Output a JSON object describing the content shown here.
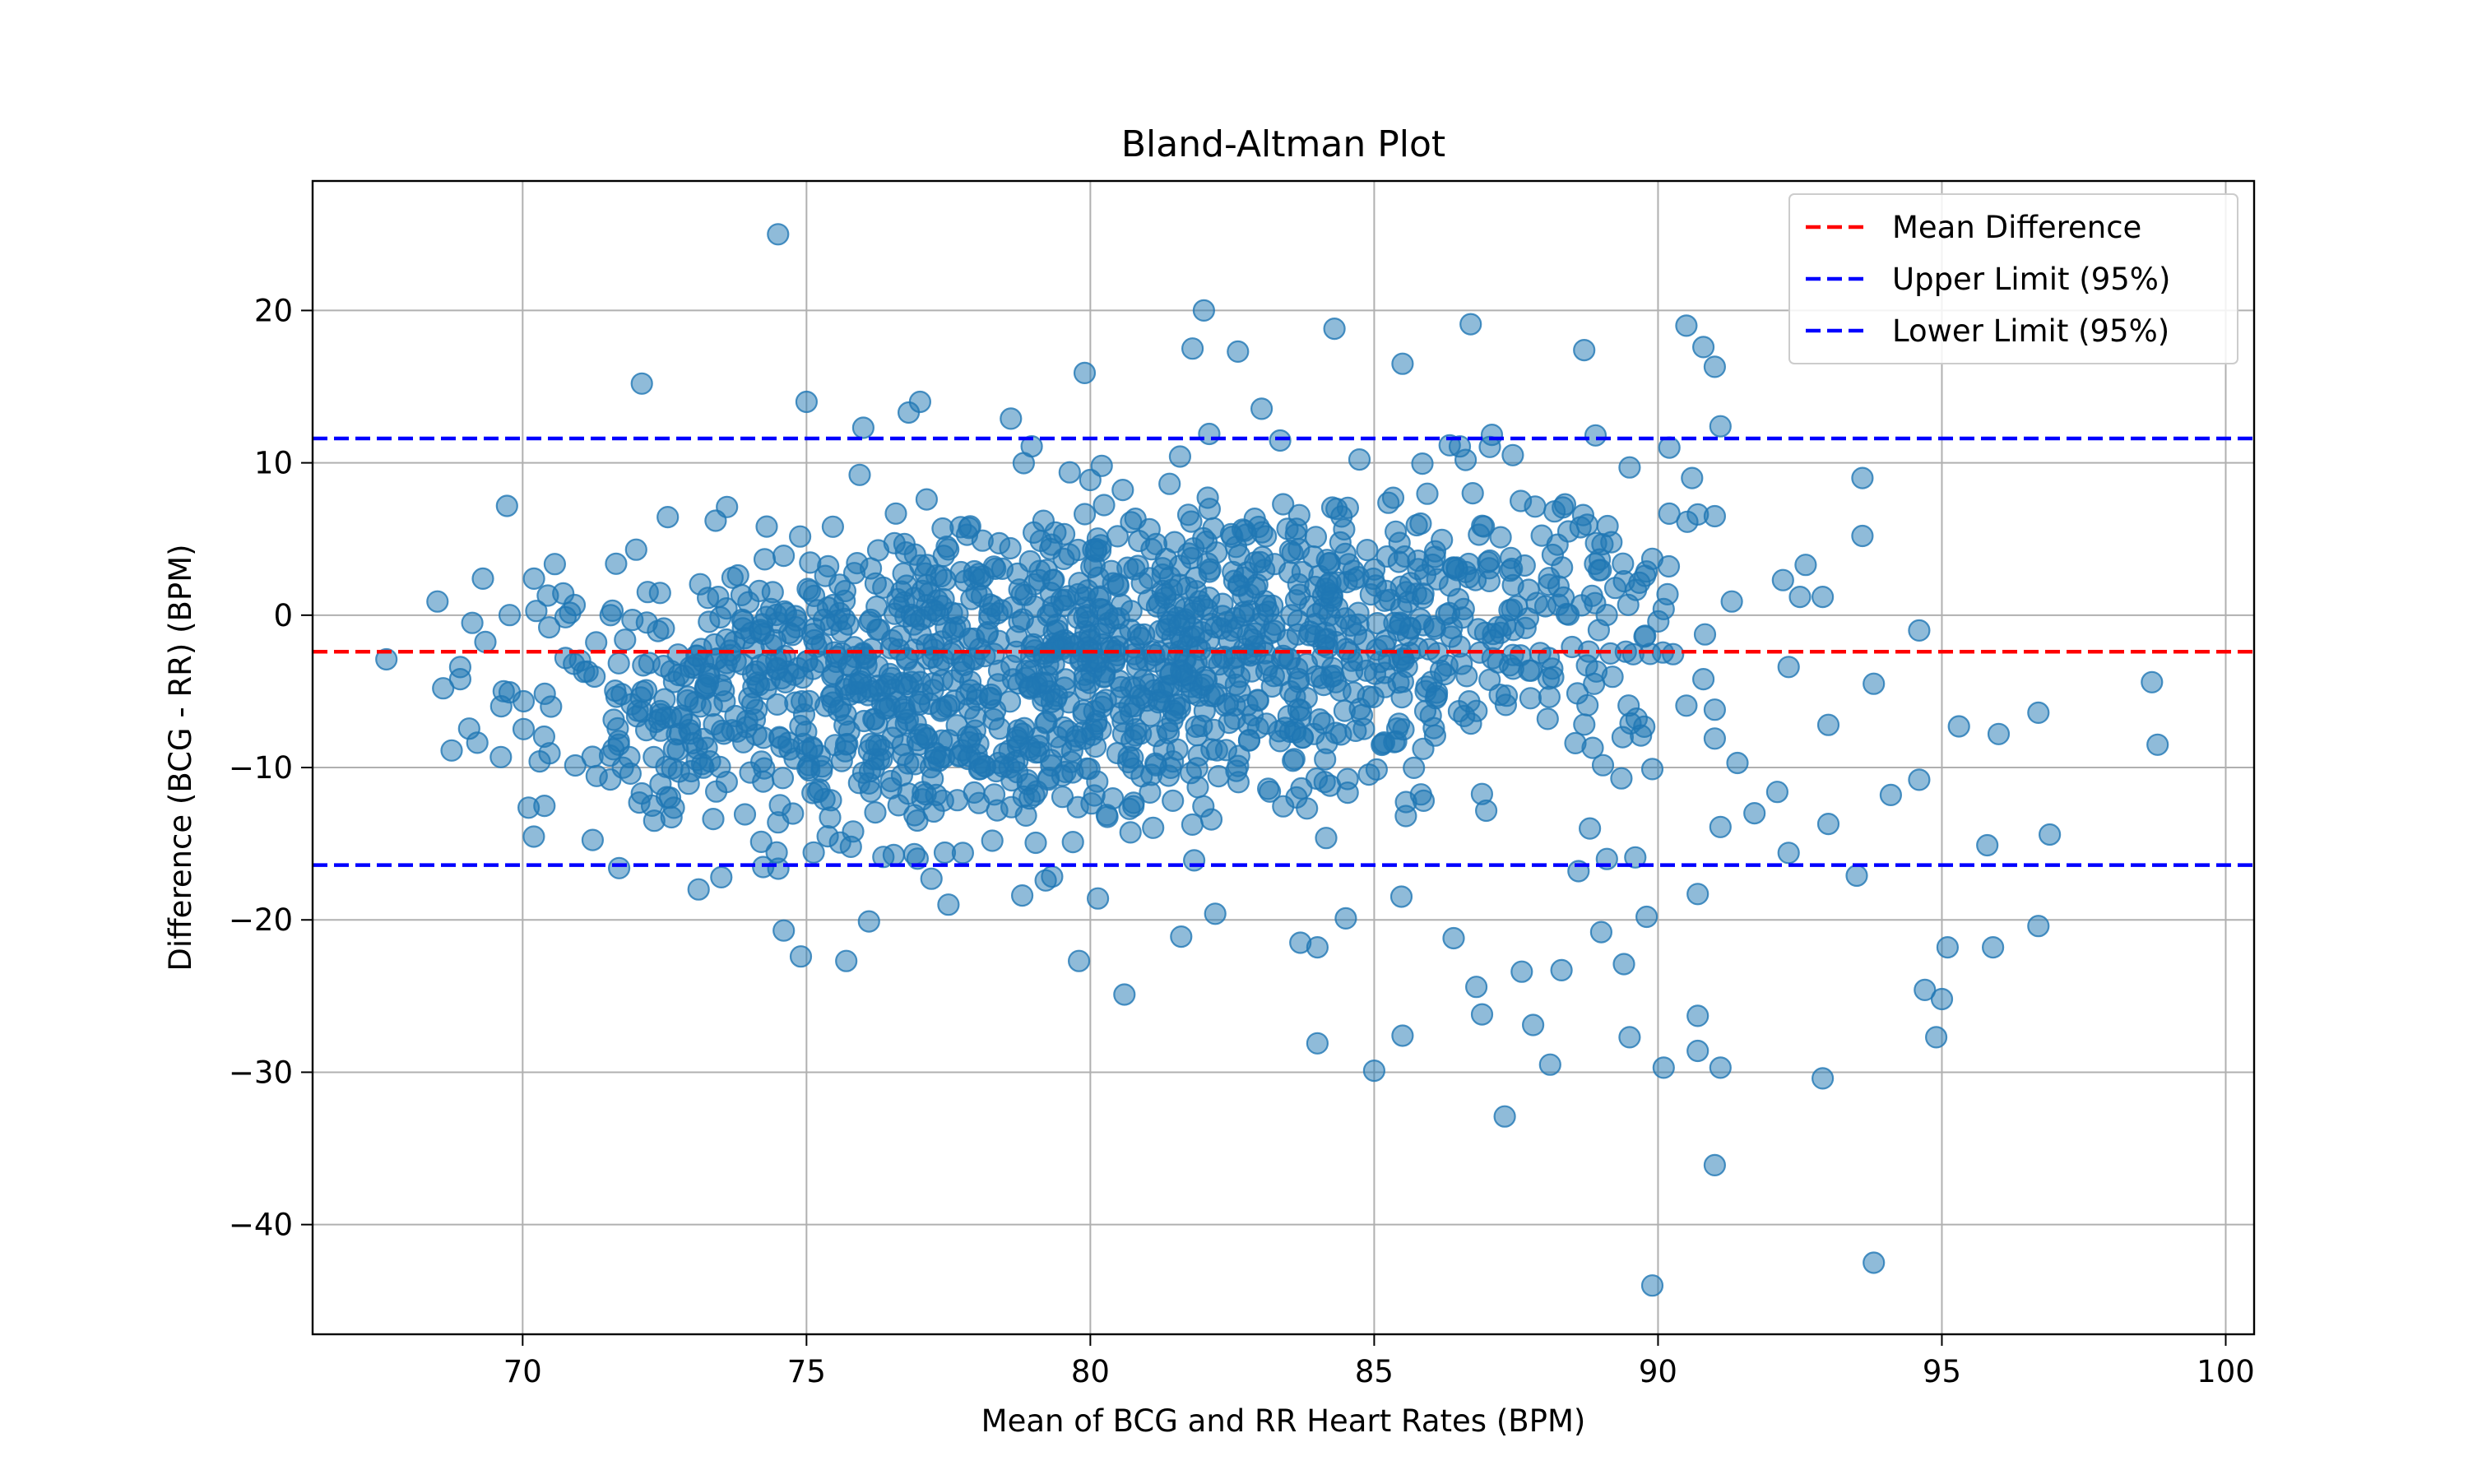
{
  "chart_data": {
    "type": "scatter",
    "title": "Bland-Altman Plot",
    "xlabel": "Mean of BCG and RR Heart Rates (BPM)",
    "ylabel": "Difference (BCG - RR) (BPM)",
    "xlim": [
      66.3,
      100.5
    ],
    "ylim": [
      -47.2,
      28.5
    ],
    "xticks": [
      70,
      75,
      80,
      85,
      90,
      95,
      100
    ],
    "xtick_labels": [
      "70",
      "75",
      "80",
      "85",
      "90",
      "95",
      "100"
    ],
    "yticks": [
      -40,
      -30,
      -20,
      -10,
      0,
      10,
      20
    ],
    "ytick_labels": [
      "−40",
      "−30",
      "−20",
      "−10",
      "0",
      "10",
      "20"
    ],
    "grid": true,
    "legend_position": "top-right",
    "colors": {
      "points": "#1f77b4",
      "mean_line": "#ff0000",
      "limit_lines": "#0000ff",
      "grid": "#b0b0b0"
    },
    "reference_lines": [
      {
        "name": "Mean Difference",
        "y": -2.4,
        "color": "#ff0000"
      },
      {
        "name": "Upper Limit (95%)",
        "y": 11.6,
        "color": "#0000ff"
      },
      {
        "name": "Lower Limit (95%)",
        "y": -16.4,
        "color": "#0000ff"
      }
    ],
    "series": [
      {
        "points": [
          [
            74.5,
            25.0
          ],
          [
            72.1,
            15.2
          ],
          [
            75.0,
            14.0
          ],
          [
            76.8,
            13.3
          ],
          [
            77.0,
            14.0
          ],
          [
            82.0,
            20.0
          ],
          [
            84.3,
            18.8
          ],
          [
            86.7,
            19.1
          ],
          [
            90.5,
            19.0
          ],
          [
            90.8,
            17.6
          ],
          [
            91.0,
            16.3
          ],
          [
            85.5,
            16.5
          ],
          [
            88.7,
            17.4
          ],
          [
            81.8,
            17.5
          ],
          [
            82.6,
            17.3
          ],
          [
            79.9,
            15.9
          ],
          [
            91.1,
            12.4
          ],
          [
            78.6,
            12.9
          ],
          [
            76.0,
            12.3
          ],
          [
            80.2,
            9.8
          ],
          [
            88.9,
            11.8
          ],
          [
            67.6,
            -2.9
          ],
          [
            68.5,
            0.9
          ],
          [
            68.6,
            -4.8
          ],
          [
            68.9,
            -4.2
          ],
          [
            69.3,
            2.4
          ],
          [
            70.2,
            2.4
          ],
          [
            70.3,
            -9.6
          ],
          [
            71.6,
            -8.8
          ],
          [
            71.9,
            -10.4
          ],
          [
            72.1,
            -11.7
          ],
          [
            73.0,
            -8.4
          ],
          [
            73.3,
            -9.6
          ],
          [
            73.5,
            -17.2
          ],
          [
            73.1,
            -18.0
          ],
          [
            71.7,
            -16.6
          ],
          [
            74.5,
            -13.6
          ],
          [
            74.6,
            -20.7
          ],
          [
            74.9,
            -22.4
          ],
          [
            75.2,
            -11.6
          ],
          [
            75.7,
            -22.7
          ],
          [
            76.1,
            -20.1
          ],
          [
            77.2,
            -17.3
          ],
          [
            77.5,
            -19.0
          ],
          [
            78.8,
            -18.4
          ],
          [
            79.8,
            -22.7
          ],
          [
            80.6,
            -24.9
          ],
          [
            81.6,
            -21.1
          ],
          [
            82.2,
            -19.6
          ],
          [
            83.7,
            -21.5
          ],
          [
            84.0,
            -28.1
          ],
          [
            84.0,
            -21.8
          ],
          [
            84.5,
            -19.9
          ],
          [
            85.0,
            -29.9
          ],
          [
            85.5,
            -27.6
          ],
          [
            86.4,
            -21.2
          ],
          [
            86.8,
            -24.4
          ],
          [
            86.9,
            -26.2
          ],
          [
            87.3,
            -32.9
          ],
          [
            87.6,
            -23.4
          ],
          [
            87.8,
            -26.9
          ],
          [
            88.1,
            -29.5
          ],
          [
            88.3,
            -23.3
          ],
          [
            89.0,
            -20.8
          ],
          [
            89.5,
            -27.7
          ],
          [
            89.9,
            -44.0
          ],
          [
            90.1,
            -29.7
          ],
          [
            90.7,
            -26.3
          ],
          [
            90.7,
            -28.6
          ],
          [
            91.1,
            -29.7
          ],
          [
            91.0,
            -36.1
          ],
          [
            92.9,
            -30.4
          ],
          [
            93.8,
            -42.5
          ],
          [
            94.7,
            -24.6
          ],
          [
            94.9,
            -27.7
          ],
          [
            95.0,
            -25.2
          ],
          [
            95.1,
            -21.8
          ],
          [
            95.9,
            -21.8
          ],
          [
            96.7,
            -20.4
          ],
          [
            95.8,
            -15.1
          ],
          [
            96.9,
            -14.4
          ],
          [
            96.0,
            -7.8
          ],
          [
            95.3,
            -7.3
          ],
          [
            96.7,
            -6.4
          ],
          [
            98.7,
            -4.4
          ],
          [
            98.8,
            -8.5
          ],
          [
            94.6,
            -1.0
          ],
          [
            94.6,
            -10.8
          ],
          [
            93.6,
            9.0
          ],
          [
            93.6,
            5.2
          ],
          [
            92.6,
            3.3
          ],
          [
            92.2,
            2.3
          ],
          [
            92.5,
            1.2
          ],
          [
            92.9,
            1.2
          ],
          [
            92.3,
            -3.4
          ],
          [
            93.0,
            -7.2
          ],
          [
            93.8,
            -4.5
          ],
          [
            94.1,
            -11.8
          ],
          [
            93.5,
            -17.1
          ],
          [
            93.0,
            -13.7
          ],
          [
            92.3,
            -15.6
          ],
          [
            91.7,
            -13.0
          ],
          [
            92.1,
            -11.6
          ],
          [
            91.4,
            -9.7
          ],
          [
            91.0,
            -8.1
          ],
          [
            91.1,
            -13.9
          ],
          [
            90.7,
            -18.3
          ],
          [
            90.8,
            -4.2
          ],
          [
            91.0,
            -6.2
          ],
          [
            91.3,
            0.9
          ],
          [
            91.0,
            6.5
          ],
          [
            90.6,
            9.0
          ],
          [
            90.2,
            11.0
          ],
          [
            89.5,
            9.7
          ],
          [
            89.9,
            3.7
          ],
          [
            90.1,
            0.4
          ],
          [
            89.7,
            -7.9
          ],
          [
            89.9,
            -10.1
          ],
          [
            89.8,
            -19.8
          ],
          [
            89.1,
            -16.0
          ],
          [
            88.8,
            -14.0
          ],
          [
            88.6,
            -16.8
          ],
          [
            89.6,
            -15.9
          ],
          [
            89.4,
            -22.9
          ],
          [
            73.4,
            6.2
          ],
          [
            73.6,
            7.1
          ],
          [
            72.0,
            4.3
          ],
          [
            70.5,
            -6.0
          ]
        ]
      }
    ],
    "cluster": {
      "count": 1500,
      "x_range": [
        68.5,
        91.5
      ],
      "x_center": 81.8,
      "slope": 0.55,
      "y_center": -2.5,
      "y_spread": 5.6
    }
  }
}
